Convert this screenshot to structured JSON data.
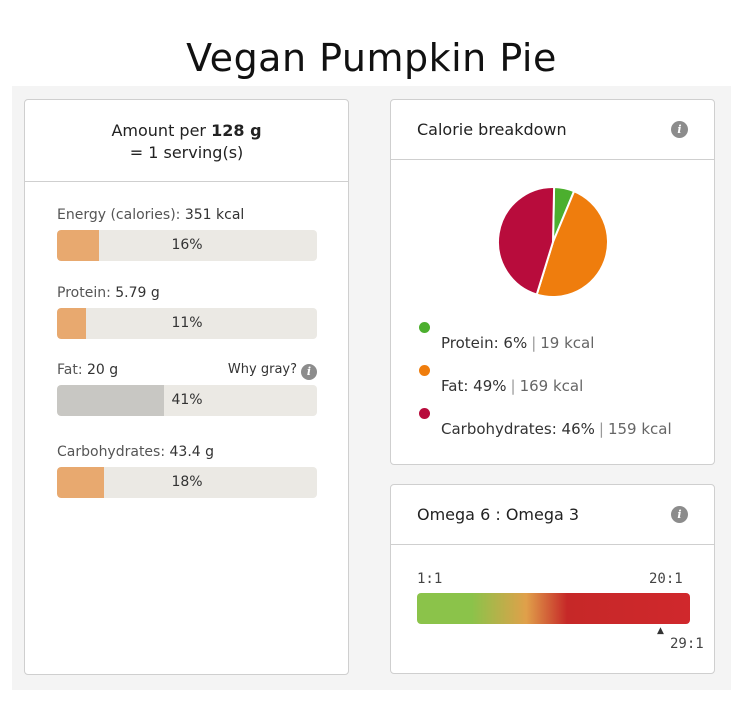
{
  "page": {
    "title": "Vegan Pumpkin Pie"
  },
  "amount": {
    "prefix": "Amount per ",
    "bold": "128 g",
    "serving": "= 1 serving(s)"
  },
  "nutrients": [
    {
      "name": "Energy (calories):",
      "value": "351 kcal",
      "percent_label": "16%",
      "percent": 16,
      "gray": false
    },
    {
      "name": "Protein:",
      "value": "5.79 g",
      "percent_label": "11%",
      "percent": 11,
      "gray": false
    },
    {
      "name": "Fat:",
      "value": "20 g",
      "percent_label": "41%",
      "percent": 41,
      "gray": true
    },
    {
      "name": "Carbohydrates:",
      "value": "43.4 g",
      "percent_label": "18%",
      "percent": 18,
      "gray": false
    }
  ],
  "why_gray": "Why gray?",
  "calorie_breakdown": {
    "title": "Calorie breakdown",
    "items": [
      {
        "label": "Protein: 6%",
        "kcal": "19 kcal",
        "percent": 6,
        "color": "#4caf2e"
      },
      {
        "label": "Fat: 49%",
        "kcal": "169 kcal",
        "percent": 49,
        "color": "#ef7d0d"
      },
      {
        "label": "Carbohydrates: 46%",
        "kcal": "159 kcal",
        "percent": 46,
        "color": "#b80c3c"
      }
    ]
  },
  "omega": {
    "title": "Omega 6 : Omega 3",
    "left_label": "1:1",
    "right_label": "20:1",
    "value_label": "29:1"
  },
  "icons": {
    "info": "info-icon"
  }
}
